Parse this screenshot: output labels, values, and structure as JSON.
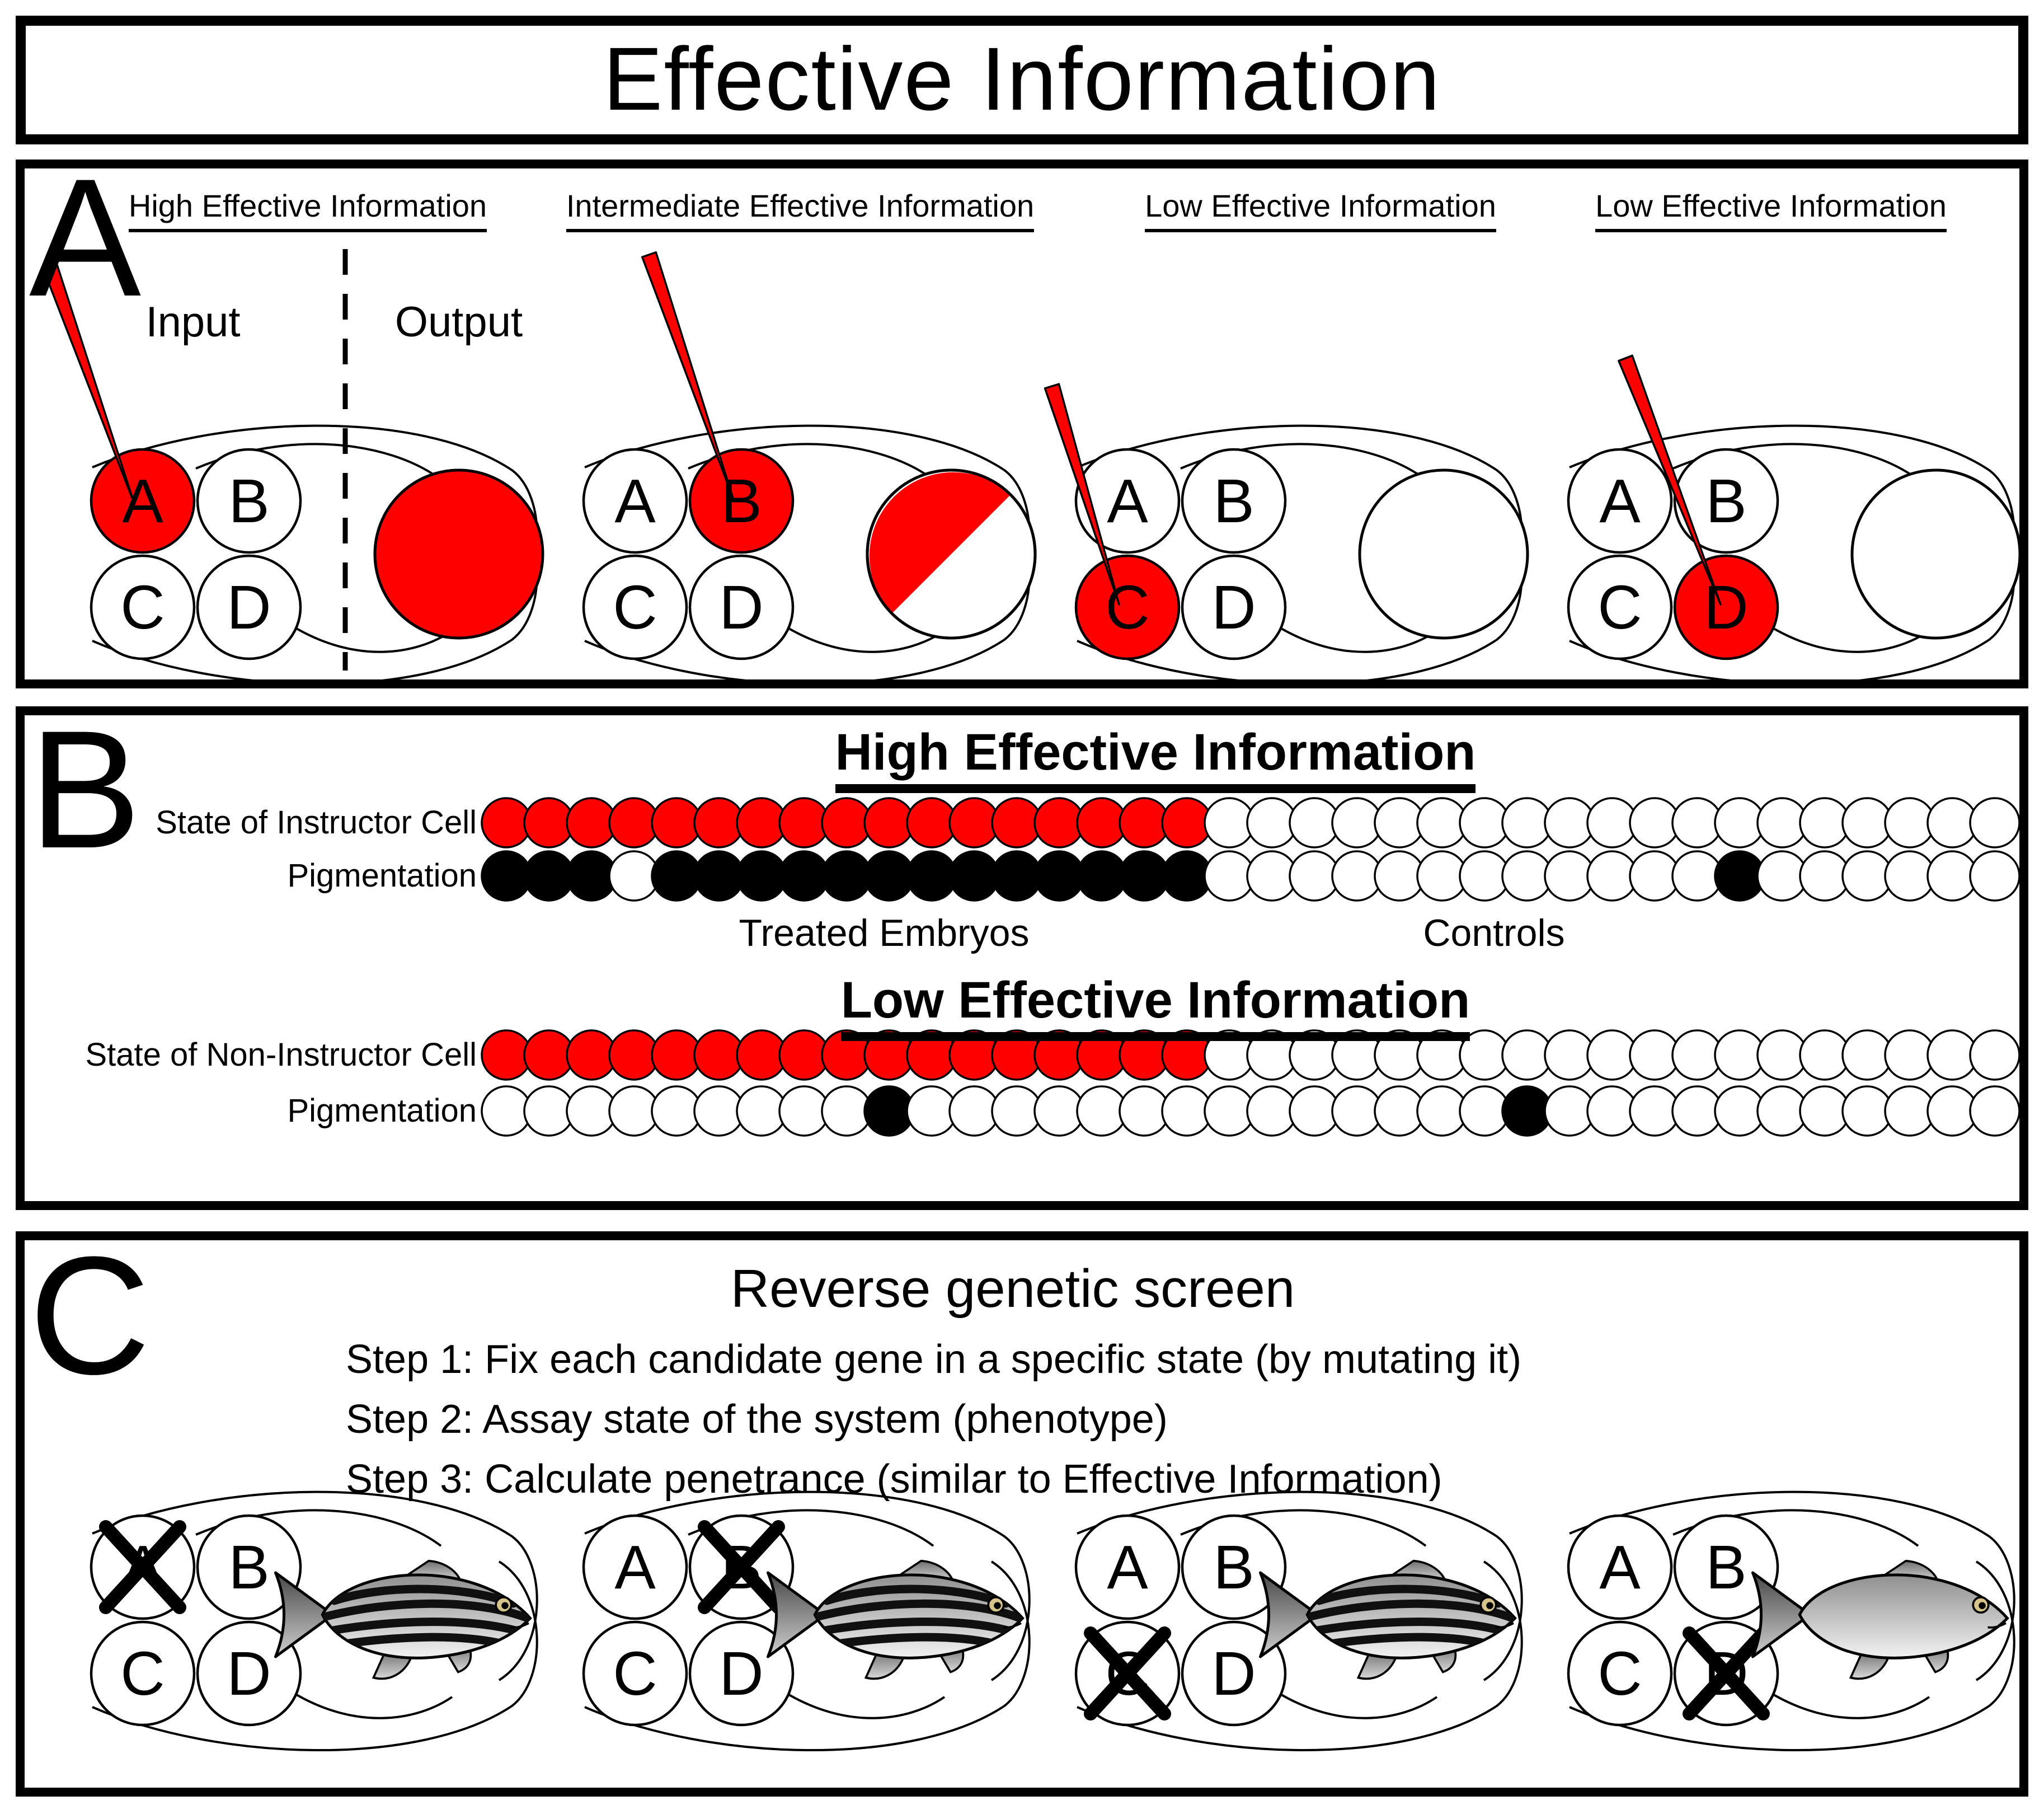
{
  "figure_title": "Effective Information",
  "colors": {
    "red": "#ff0000",
    "black": "#000000",
    "white": "#ffffff"
  },
  "panel_a": {
    "label": "A",
    "input_label": "Input",
    "output_label": "Output",
    "diagrams": [
      {
        "title": "High Effective Information",
        "cells": [
          "A",
          "B",
          "C",
          "D"
        ],
        "injected_cell": "A",
        "output_state": "red"
      },
      {
        "title": "Intermediate Effective Information",
        "cells": [
          "A",
          "B",
          "C",
          "D"
        ],
        "injected_cell": "B",
        "output_state": "half-red"
      },
      {
        "title": "Low Effective Information",
        "cells": [
          "A",
          "B",
          "C",
          "D"
        ],
        "injected_cell": "C",
        "output_state": "white"
      },
      {
        "title": "Low Effective Information",
        "cells": [
          "A",
          "B",
          "C",
          "D"
        ],
        "injected_cell": "D",
        "output_state": "white"
      }
    ]
  },
  "panel_b": {
    "label": "B",
    "treated_label": "Treated Embryos",
    "controls_label": "Controls",
    "dot_legend": {
      "R": "red",
      "K": "black",
      "W": "white"
    },
    "sections": [
      {
        "title": "High Effective Information",
        "rows": [
          {
            "label": "State of Instructor Cell",
            "dots": "RRRRRRRRRRRRRRRRRWWWWWWWWWWWWWWWWWWW"
          },
          {
            "label": "Pigmentation",
            "dots": "KKKWKKKKKKKKKKKKKWWWWWWWWWWWWKWWWWWW"
          }
        ]
      },
      {
        "title": "Low Effective Information",
        "rows": [
          {
            "label": "State of Non-Instructor Cell",
            "dots": "RRRRRRRRRRRRRRRRRWWWWWWWWWWWWWWWWWWW"
          },
          {
            "label": "Pigmentation",
            "dots": "WWWWWWWWWKWWWWWWWWWWWWWWKWWWWWWWWWWW"
          }
        ]
      }
    ]
  },
  "panel_c": {
    "label": "C",
    "title": "Reverse genetic screen",
    "steps": [
      "Step 1: Fix each candidate gene in a specific state (by mutating it)",
      "Step 2: Assay state of the system (phenotype)",
      "Step 3: Calculate penetrance (similar to Effective Information)"
    ],
    "diagrams": [
      {
        "cells": [
          "A",
          "B",
          "C",
          "D"
        ],
        "knocked_out_cell": "A",
        "fish_phenotype": "striped"
      },
      {
        "cells": [
          "A",
          "B",
          "C",
          "D"
        ],
        "knocked_out_cell": "B",
        "fish_phenotype": "striped"
      },
      {
        "cells": [
          "A",
          "B",
          "C",
          "D"
        ],
        "knocked_out_cell": "C",
        "fish_phenotype": "striped"
      },
      {
        "cells": [
          "A",
          "B",
          "C",
          "D"
        ],
        "knocked_out_cell": "D",
        "fish_phenotype": "plain"
      }
    ]
  }
}
